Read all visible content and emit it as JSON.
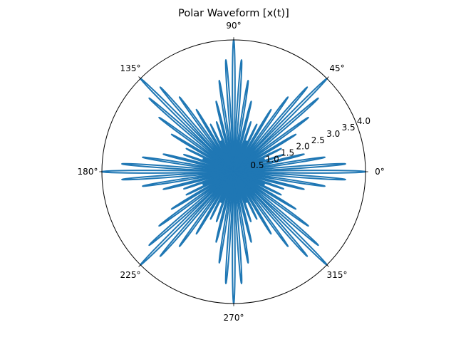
{
  "chart_data": {
    "type": "polar-line",
    "title": "Polar Waveform [x(t)]",
    "angular_ticks": [
      "0°",
      "45°",
      "90°",
      "135°",
      "180°",
      "225°",
      "270°",
      "315°"
    ],
    "angular_tick_degrees": [
      0,
      45,
      90,
      135,
      180,
      225,
      270,
      315
    ],
    "radial_ticks": [
      "0.5",
      "1.0",
      "1.5",
      "2.0",
      "2.5",
      "3.0",
      "3.5",
      "4.0"
    ],
    "radial_tick_values": [
      0.5,
      1.0,
      1.5,
      2.0,
      2.5,
      3.0,
      3.5,
      4.0
    ],
    "rlim": [
      0,
      4.0
    ],
    "grid": false,
    "series": [
      {
        "color": "#1f77b4",
        "description_formula": "r = |x(t)|, multi-lobed rose with 8 main spokes (peak ~4.0) and secondary lobes of decreasing amplitude",
        "main_lobe_directions_deg": [
          0,
          45,
          90,
          135,
          180,
          225,
          270,
          315
        ],
        "peak_r": 4.0,
        "lobe_amplitudes": [
          4.0,
          3.4,
          2.8,
          2.2,
          1.6,
          1.0
        ],
        "lobe_offsets_deg": [
          4,
          9,
          14,
          19,
          23,
          27
        ]
      }
    ]
  }
}
